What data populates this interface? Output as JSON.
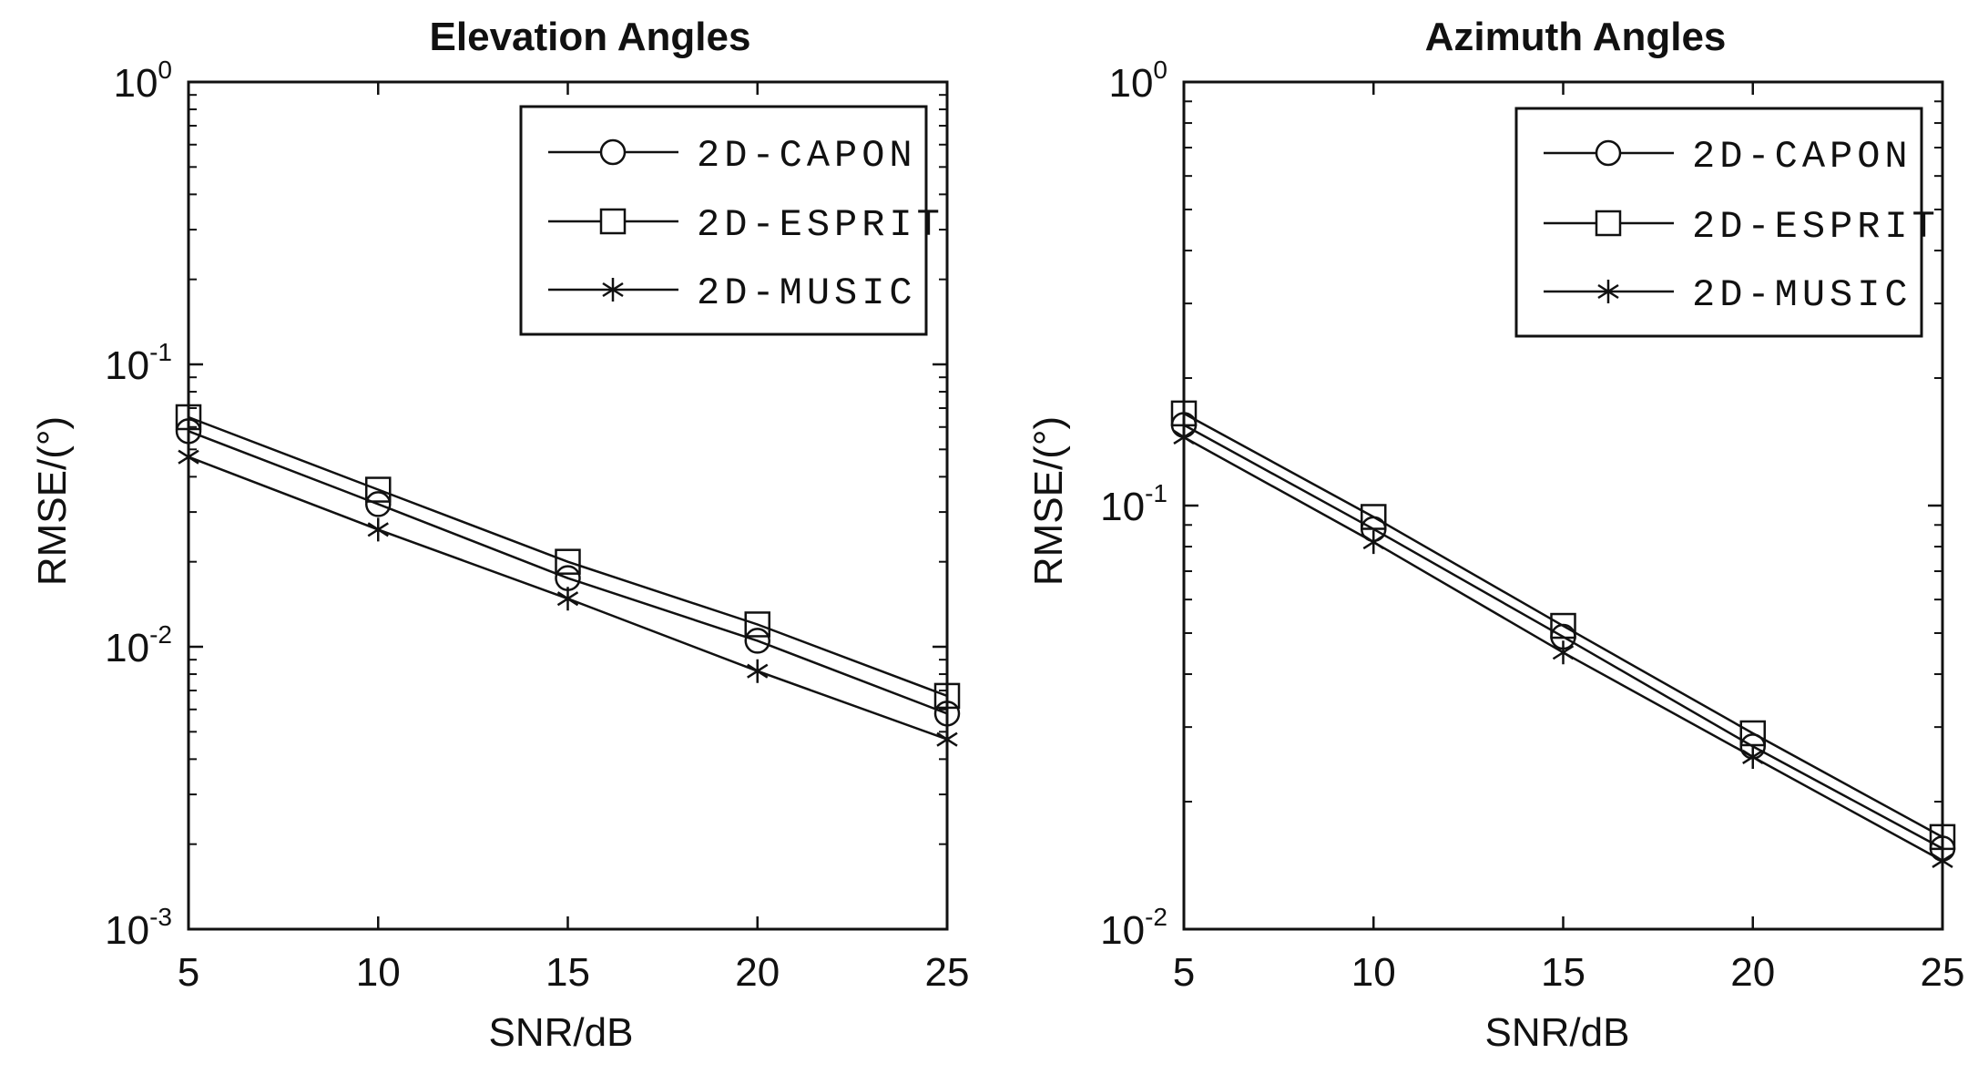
{
  "chart_data": [
    {
      "type": "line",
      "title": "Elevation Angles",
      "xlabel": "SNR/dB",
      "ylabel": "RMSE/(°)",
      "yscale": "log",
      "xlim": [
        5,
        25
      ],
      "ylim": [
        0.001,
        1
      ],
      "x": [
        5,
        10,
        15,
        20,
        25
      ],
      "xticks": [
        "5",
        "10",
        "15",
        "20",
        "25"
      ],
      "yticks": [
        {
          "base": "10",
          "exp": "-3",
          "value": 0.001
        },
        {
          "base": "10",
          "exp": "-2",
          "value": 0.01
        },
        {
          "base": "10",
          "exp": "-1",
          "value": 0.1
        },
        {
          "base": "10",
          "exp": "0",
          "value": 1
        }
      ],
      "legend": "top-right",
      "series": [
        {
          "name": "2D-CAPON",
          "marker": "circle",
          "values": [
            0.058,
            0.032,
            0.0175,
            0.0105,
            0.0058
          ]
        },
        {
          "name": "2D-ESPRIT",
          "marker": "square",
          "values": [
            0.065,
            0.036,
            0.02,
            0.012,
            0.0067
          ]
        },
        {
          "name": "2D-MUSIC",
          "marker": "star",
          "values": [
            0.047,
            0.026,
            0.0148,
            0.0082,
            0.0047
          ]
        }
      ]
    },
    {
      "type": "line",
      "title": "Azimuth Angles",
      "xlabel": "SNR/dB",
      "ylabel": "RMSE/(°)",
      "yscale": "log",
      "xlim": [
        5,
        25
      ],
      "ylim": [
        0.01,
        1
      ],
      "x": [
        5,
        10,
        15,
        20,
        25
      ],
      "xticks": [
        "5",
        "10",
        "15",
        "20",
        "25"
      ],
      "yticks": [
        {
          "base": "10",
          "exp": "-2",
          "value": 0.01
        },
        {
          "base": "10",
          "exp": "-1",
          "value": 0.1
        },
        {
          "base": "10",
          "exp": "0",
          "value": 1
        }
      ],
      "legend": "top-right",
      "series": [
        {
          "name": "2D-CAPON",
          "marker": "circle",
          "values": [
            0.155,
            0.088,
            0.049,
            0.027,
            0.0155
          ]
        },
        {
          "name": "2D-ESPRIT",
          "marker": "square",
          "values": [
            0.165,
            0.094,
            0.052,
            0.029,
            0.0165
          ]
        },
        {
          "name": "2D-MUSIC",
          "marker": "star",
          "values": [
            0.145,
            0.082,
            0.045,
            0.0255,
            0.0145
          ]
        }
      ]
    }
  ]
}
